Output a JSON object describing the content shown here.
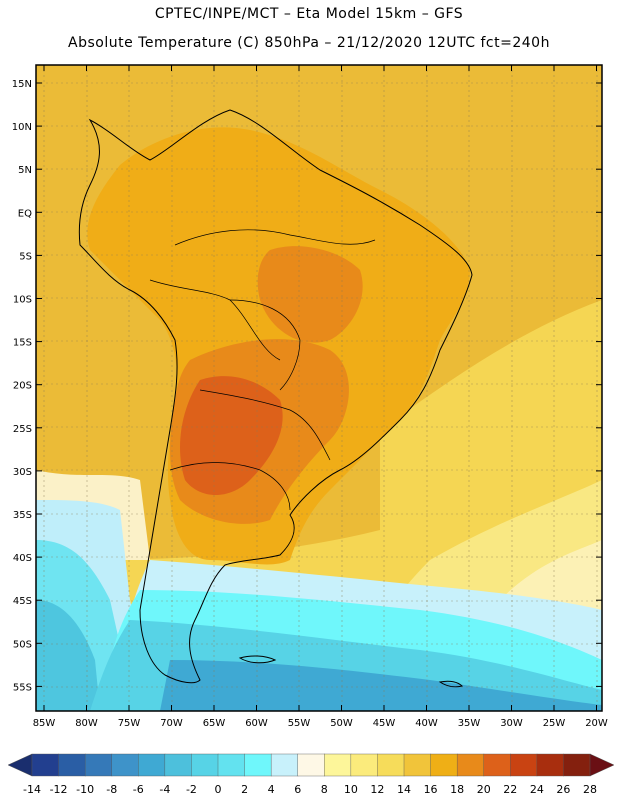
{
  "header": {
    "line1": "CPTEC/INPE/MCT –  Eta Model 15km – GFS",
    "line2": "Absolute Temperature (C) 850hPa – 21/12/2020 12UTC fct=240h"
  },
  "axes": {
    "lat_labels": [
      "15N",
      "10N",
      "5N",
      "EQ",
      "5S",
      "10S",
      "15S",
      "20S",
      "25S",
      "30S",
      "35S",
      "40S",
      "45S",
      "50S",
      "55S"
    ],
    "lon_labels": [
      "85W",
      "80W",
      "75W",
      "70W",
      "65W",
      "60W",
      "55W",
      "50W",
      "45W",
      "40W",
      "35W",
      "30W",
      "25W",
      "20W"
    ]
  },
  "colorbar": {
    "labels": [
      "-14",
      "-12",
      "-10",
      "-8",
      "-6",
      "-4",
      "-2",
      "0",
      "2",
      "4",
      "6",
      "8",
      "10",
      "12",
      "14",
      "16",
      "18",
      "20",
      "22",
      "24",
      "26",
      "28"
    ],
    "colors": [
      "#223f8f",
      "#2a5ea5",
      "#3579b8",
      "#3e93c9",
      "#3fa9d3",
      "#4dc0dc",
      "#57d3e6",
      "#63e2ef",
      "#6ff7fb",
      "#c8f1fb",
      "#fef8e6",
      "#fdf69a",
      "#fbeb7c",
      "#f6dc5a",
      "#f1c43a",
      "#efaf16",
      "#e88a1a",
      "#dd611a",
      "#c94312",
      "#a82e0e",
      "#84200e"
    ],
    "end_low": "#1a2e6e",
    "end_high": "#6a0f14"
  },
  "map": {
    "lon_min": -85,
    "lon_max": -20,
    "lat_min": -58,
    "lat_max": 16,
    "land_color": "#f0b32a",
    "ocean_color": "#ecbd3b"
  }
}
